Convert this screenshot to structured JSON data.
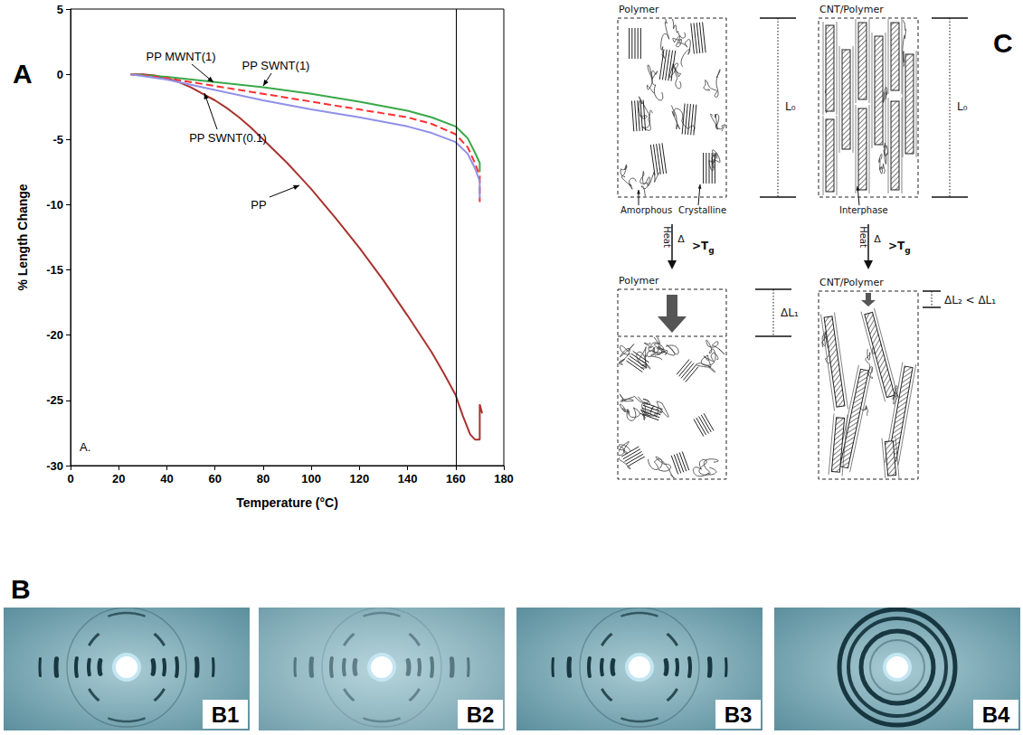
{
  "panel_labels": [
    "A",
    "B",
    "C"
  ],
  "chart_data": {
    "type": "line",
    "xlabel": "Temperature (°C)",
    "ylabel": "% Length Change",
    "xlim": [
      0,
      180
    ],
    "xticks": [
      0,
      20,
      40,
      60,
      80,
      100,
      120,
      140,
      160,
      180
    ],
    "ylim": [
      -30,
      5
    ],
    "yticks": [
      -30,
      -25,
      -20,
      -15,
      -10,
      -5,
      0,
      5
    ],
    "grid": false,
    "inner_label": "A.",
    "reference_line_x": 160,
    "annotations": [
      "PP MWNT(1)",
      "PP SWNT(1)",
      "PP SWNT(0.1)",
      "PP"
    ],
    "series": [
      {
        "name": "PP",
        "color": "#a8332f",
        "line_style": "solid",
        "x": [
          25,
          30,
          35,
          40,
          45,
          50,
          55,
          60,
          65,
          70,
          75,
          80,
          85,
          90,
          95,
          100,
          110,
          120,
          130,
          140,
          150,
          155,
          160,
          163,
          166,
          168,
          170,
          170,
          171
        ],
        "values": [
          0,
          0,
          -0.1,
          -0.3,
          -0.6,
          -1.0,
          -1.5,
          -2.0,
          -2.6,
          -3.3,
          -4.1,
          -5.0,
          -5.9,
          -6.8,
          -7.8,
          -8.8,
          -11.0,
          -13.3,
          -15.8,
          -18.5,
          -21.3,
          -22.9,
          -24.6,
          -26.2,
          -27.6,
          -28.0,
          -28.0,
          -25.3,
          -26.0
        ]
      },
      {
        "name": "PP SWNT(1)",
        "color": "#3aa84a",
        "line_style": "solid",
        "x": [
          25,
          40,
          60,
          80,
          100,
          120,
          140,
          150,
          160,
          165,
          168,
          170,
          170
        ],
        "values": [
          0,
          -0.2,
          -0.6,
          -1.0,
          -1.5,
          -2.1,
          -2.8,
          -3.3,
          -4.0,
          -4.9,
          -6.0,
          -6.8,
          -7.5
        ]
      },
      {
        "name": "PP MWNT(1)",
        "color": "#ff3030",
        "line_style": "dashed",
        "x": [
          25,
          40,
          60,
          80,
          100,
          120,
          140,
          150,
          160,
          165,
          168,
          170,
          170
        ],
        "values": [
          0,
          -0.3,
          -0.9,
          -1.5,
          -2.1,
          -2.7,
          -3.3,
          -3.8,
          -4.6,
          -5.6,
          -6.8,
          -7.8,
          -9.8
        ]
      },
      {
        "name": "PP SWNT(0.1)",
        "color": "#9090e8",
        "line_style": "solid",
        "x": [
          25,
          40,
          60,
          80,
          100,
          120,
          140,
          150,
          160,
          165,
          168,
          170,
          170
        ],
        "values": [
          0,
          -0.4,
          -1.2,
          -2.0,
          -2.7,
          -3.3,
          -4.0,
          -4.5,
          -5.2,
          -6.1,
          -7.2,
          -8.2,
          -9.5
        ]
      }
    ]
  },
  "diffraction_images": {
    "labels": [
      "B1",
      "B2",
      "B3",
      "B4"
    ]
  },
  "diagram": {
    "left": {
      "title_top": "Polymer",
      "length": "L₀",
      "labels": [
        "Amorphous",
        "Crystalline"
      ],
      "heat": "Heat",
      "heat_symbol": "Δ",
      "condition": {
        "text": ">T",
        "subscript": "g"
      },
      "title_bottom": "Polymer",
      "change": "ΔL₁"
    },
    "right": {
      "title_top": "CNT/Polymer",
      "length": "L₀",
      "labels": [
        "Interphase"
      ],
      "heat": "Heat",
      "heat_symbol": "Δ",
      "condition": {
        "text": ">T",
        "subscript": "g"
      },
      "title_bottom": "CNT/Polymer",
      "change": "ΔL₂ < ΔL₁"
    }
  }
}
